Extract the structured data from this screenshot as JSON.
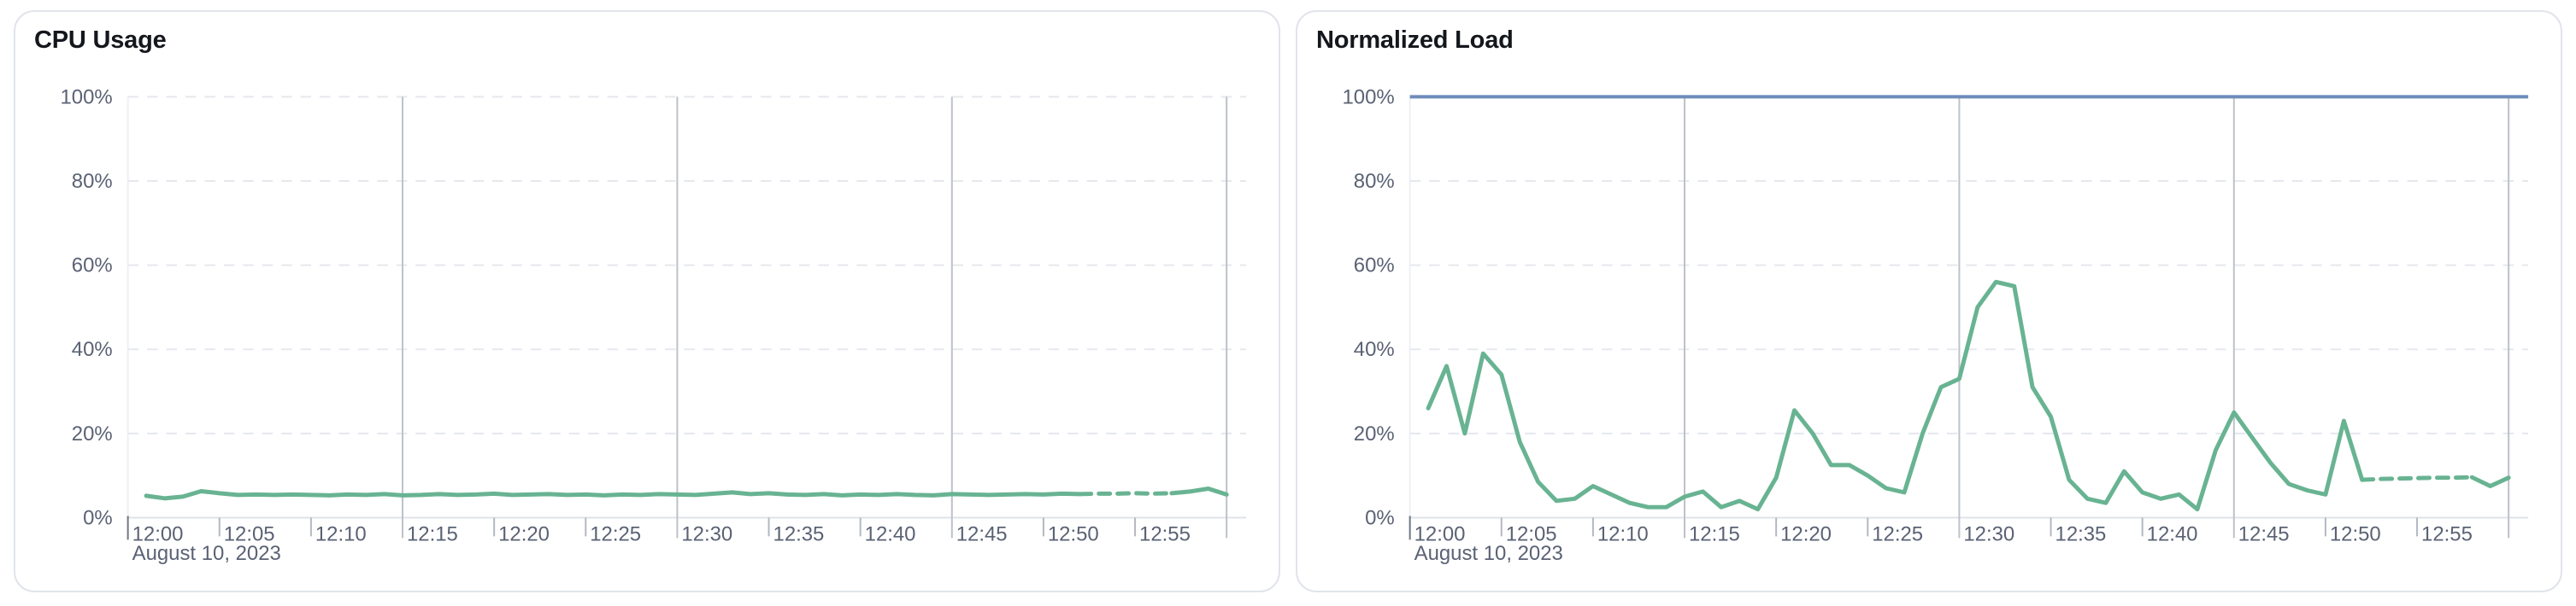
{
  "page": {
    "background_color": "#ffffff",
    "card_border_color": "#e1e4eb"
  },
  "chart_data": [
    {
      "type": "line",
      "title": "CPU Usage",
      "x_axis": {
        "tick_labels": [
          "12:00",
          "12:05",
          "12:10",
          "12:15",
          "12:20",
          "12:25",
          "12:30",
          "12:35",
          "12:40",
          "12:45",
          "12:50",
          "12:55"
        ],
        "tick_interval_min": 5,
        "date_label": "August 10, 2023",
        "range_min": [
          0,
          61
        ],
        "major_gridlines_min": [
          15,
          30,
          45,
          60
        ]
      },
      "y_axis": {
        "tick_labels": [
          "0%",
          "20%",
          "40%",
          "60%",
          "80%",
          "100%"
        ],
        "ylim": [
          0,
          100
        ],
        "tick_step": 20
      },
      "grid": true,
      "legend": false,
      "series": [
        {
          "name": "cpu-usage",
          "color": "#68b392",
          "start_min": 1,
          "interval_min": 1,
          "dashed_window_min": [
            52,
            57
          ],
          "values": [
            5.2,
            4.6,
            5.0,
            6.3,
            5.8,
            5.4,
            5.5,
            5.4,
            5.5,
            5.4,
            5.3,
            5.5,
            5.4,
            5.6,
            5.3,
            5.4,
            5.6,
            5.4,
            5.5,
            5.7,
            5.4,
            5.5,
            5.6,
            5.4,
            5.5,
            5.3,
            5.5,
            5.4,
            5.6,
            5.5,
            5.4,
            5.7,
            6.0,
            5.6,
            5.8,
            5.5,
            5.4,
            5.6,
            5.3,
            5.5,
            5.4,
            5.6,
            5.4,
            5.3,
            5.6,
            5.5,
            5.4,
            5.5,
            5.6,
            5.5,
            5.7,
            5.6,
            5.7,
            5.7,
            5.8,
            5.7,
            5.8,
            6.2,
            6.9,
            5.5
          ]
        }
      ]
    },
    {
      "type": "line",
      "title": "Normalized Load",
      "x_axis": {
        "tick_labels": [
          "12:00",
          "12:05",
          "12:10",
          "12:15",
          "12:20",
          "12:25",
          "12:30",
          "12:35",
          "12:40",
          "12:45",
          "12:50",
          "12:55"
        ],
        "tick_interval_min": 5,
        "date_label": "August 10, 2023",
        "range_min": [
          0,
          61
        ],
        "major_gridlines_min": [
          15,
          30,
          45,
          60
        ]
      },
      "y_axis": {
        "tick_labels": [
          "0%",
          "20%",
          "40%",
          "60%",
          "80%",
          "100%"
        ],
        "ylim": [
          0,
          100
        ],
        "tick_step": 20
      },
      "grid": true,
      "legend": false,
      "series": [
        {
          "name": "limit-100pct",
          "color": "#6d8cba",
          "constant_value": 100
        },
        {
          "name": "normalized-load",
          "color": "#68b392",
          "start_min": 1,
          "interval_min": 1,
          "dashed_window_min": [
            52,
            58
          ],
          "values": [
            26,
            36,
            20,
            39,
            34,
            18,
            8.5,
            4,
            4.5,
            7.5,
            5.5,
            3.5,
            2.5,
            2.5,
            5,
            6.2,
            2.5,
            4,
            2,
            9.5,
            25.5,
            20,
            12.5,
            12.5,
            10,
            7,
            6,
            20,
            31,
            33,
            50,
            56,
            55,
            31,
            24,
            9,
            4.5,
            3.5,
            11,
            6,
            4.5,
            5.5,
            2,
            16,
            25,
            19,
            13,
            8,
            6.5,
            5.5,
            23,
            9,
            9.2,
            9.3,
            9.4,
            9.5,
            9.5,
            9.6,
            7.5,
            9.5
          ]
        }
      ]
    }
  ],
  "style": {
    "h_gridline_color": "#e5e8ee",
    "axis_line_color": "#dfe3ea",
    "major_gridline_color": "#bdc1c9",
    "minor_tick_color": "#b3b8c2",
    "origin_tick_color": "#6f7685",
    "plot_border_color": "#eef0f4",
    "label_color": "#5a6274"
  }
}
